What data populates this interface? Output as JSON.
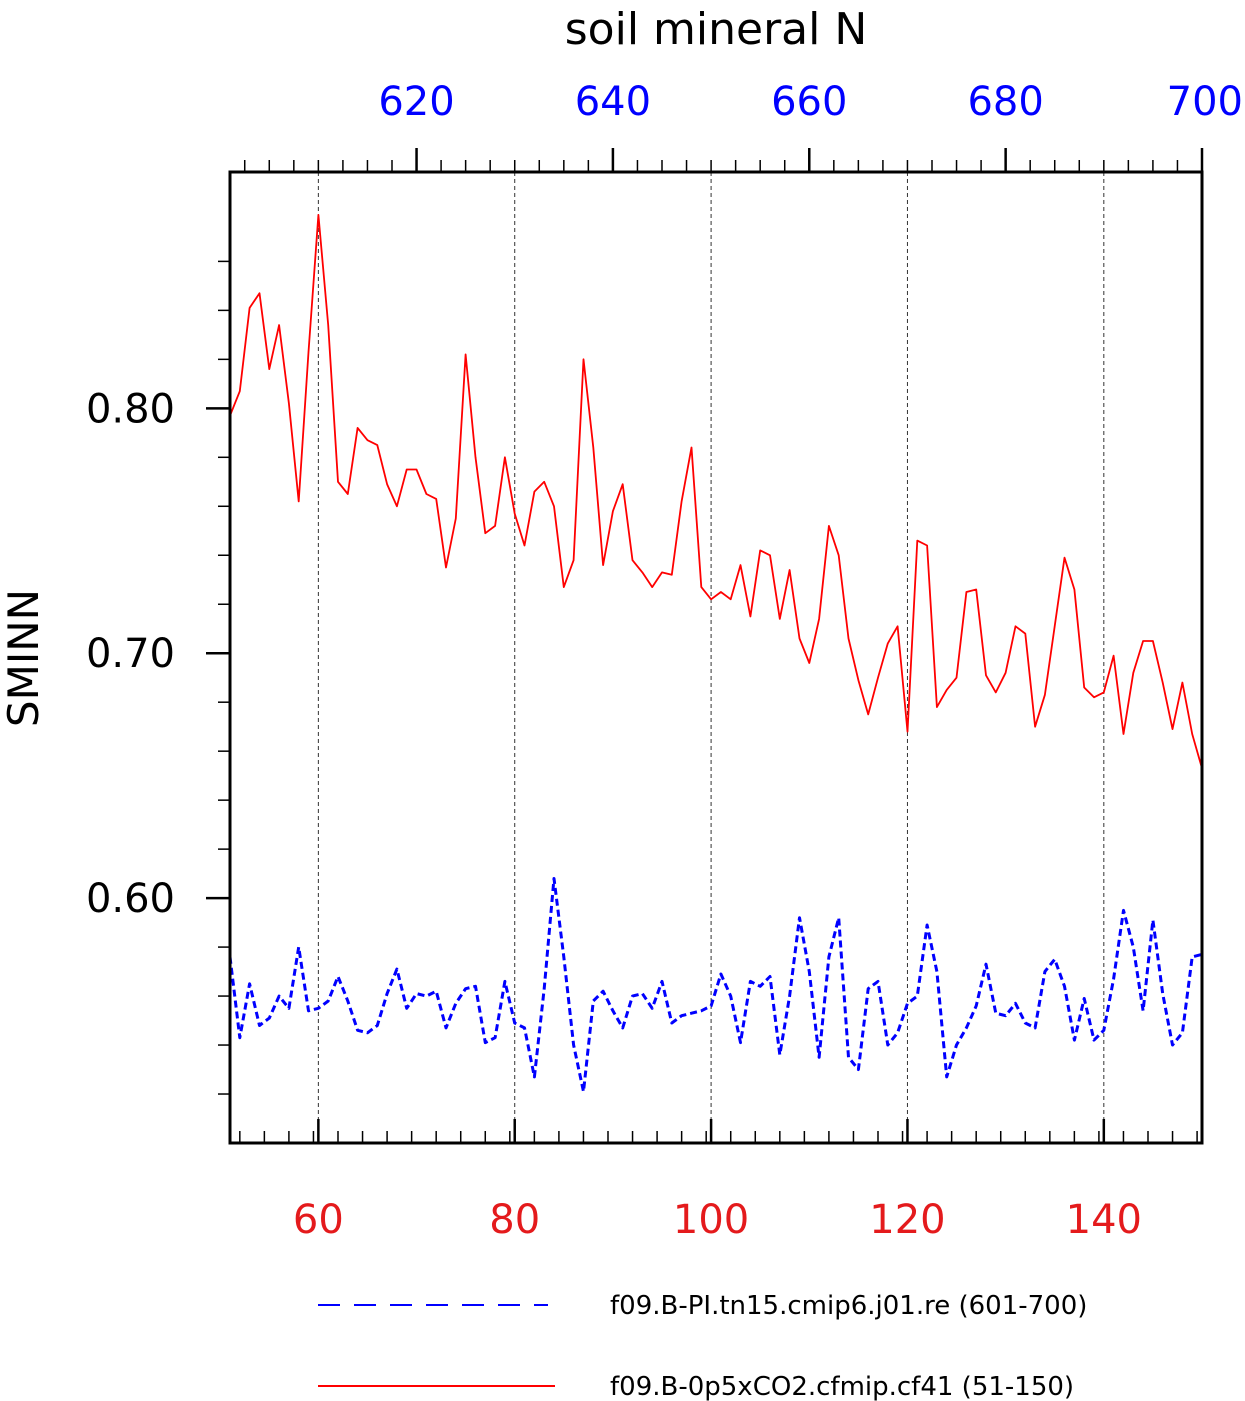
{
  "chart_data": {
    "type": "line",
    "title": "soil mineral N",
    "ylabel": "SMINN",
    "colors": {
      "bottom_axis": "#e41a1c",
      "top_axis": "#0000ff",
      "red_series": "#ff0000",
      "blue_series": "#0000ff"
    },
    "bottom_axis": {
      "range": [
        51,
        150
      ],
      "ticks": [
        60,
        80,
        100,
        120,
        140
      ],
      "tick_labels": [
        "60",
        "80",
        "100",
        "120",
        "140"
      ]
    },
    "top_axis": {
      "range": [
        601,
        700
      ],
      "ticks": [
        620,
        640,
        660,
        680,
        700
      ],
      "tick_labels": [
        "620",
        "640",
        "660",
        "680",
        "700"
      ]
    },
    "y_axis": {
      "range": [
        0.5,
        0.8965
      ],
      "ticks": [
        0.6,
        0.7,
        0.8
      ],
      "tick_labels": [
        "0.60",
        "0.70",
        "0.80"
      ]
    },
    "grid": "vertical dashed at major x ticks",
    "legend": "bottom",
    "series": [
      {
        "name": "f09.B-PI.tn15.cmip6.j01.re (601-700)",
        "axis": "top",
        "style": "dashed",
        "x_start": 601,
        "values": [
          0.576,
          0.543,
          0.565,
          0.548,
          0.551,
          0.56,
          0.555,
          0.58,
          0.554,
          0.555,
          0.558,
          0.568,
          0.558,
          0.546,
          0.545,
          0.548,
          0.561,
          0.571,
          0.555,
          0.561,
          0.56,
          0.562,
          0.547,
          0.557,
          0.563,
          0.564,
          0.541,
          0.543,
          0.566,
          0.549,
          0.547,
          0.527,
          0.563,
          0.608,
          0.576,
          0.54,
          0.521,
          0.558,
          0.562,
          0.554,
          0.547,
          0.56,
          0.561,
          0.555,
          0.566,
          0.549,
          0.552,
          0.553,
          0.554,
          0.556,
          0.569,
          0.56,
          0.541,
          0.566,
          0.564,
          0.568,
          0.536,
          0.56,
          0.592,
          0.57,
          0.535,
          0.576,
          0.592,
          0.535,
          0.53,
          0.563,
          0.566,
          0.54,
          0.545,
          0.557,
          0.56,
          0.589,
          0.57,
          0.527,
          0.54,
          0.547,
          0.556,
          0.573,
          0.553,
          0.552,
          0.557,
          0.549,
          0.547,
          0.57,
          0.575,
          0.564,
          0.542,
          0.559,
          0.542,
          0.546,
          0.567,
          0.595,
          0.58,
          0.554,
          0.591,
          0.561,
          0.54,
          0.545,
          0.576,
          0.577
        ]
      },
      {
        "name": "f09.B-0p5xCO2.cfmip.cf41 (51-150)",
        "axis": "bottom",
        "style": "solid",
        "x_start": 51,
        "values": [
          0.797,
          0.807,
          0.841,
          0.847,
          0.816,
          0.834,
          0.802,
          0.762,
          0.823,
          0.879,
          0.834,
          0.77,
          0.765,
          0.792,
          0.787,
          0.785,
          0.769,
          0.76,
          0.775,
          0.775,
          0.765,
          0.763,
          0.735,
          0.755,
          0.822,
          0.78,
          0.749,
          0.752,
          0.78,
          0.757,
          0.744,
          0.766,
          0.77,
          0.76,
          0.727,
          0.738,
          0.82,
          0.784,
          0.736,
          0.758,
          0.769,
          0.738,
          0.733,
          0.727,
          0.733,
          0.732,
          0.762,
          0.784,
          0.727,
          0.722,
          0.725,
          0.722,
          0.736,
          0.715,
          0.742,
          0.74,
          0.714,
          0.734,
          0.706,
          0.696,
          0.714,
          0.752,
          0.74,
          0.706,
          0.689,
          0.675,
          0.69,
          0.704,
          0.711,
          0.668,
          0.746,
          0.744,
          0.678,
          0.685,
          0.69,
          0.725,
          0.726,
          0.691,
          0.684,
          0.692,
          0.711,
          0.708,
          0.67,
          0.683,
          0.711,
          0.739,
          0.726,
          0.686,
          0.682,
          0.684,
          0.699,
          0.667,
          0.692,
          0.705,
          0.705,
          0.688,
          0.669,
          0.688,
          0.667,
          0.653
        ]
      }
    ]
  }
}
